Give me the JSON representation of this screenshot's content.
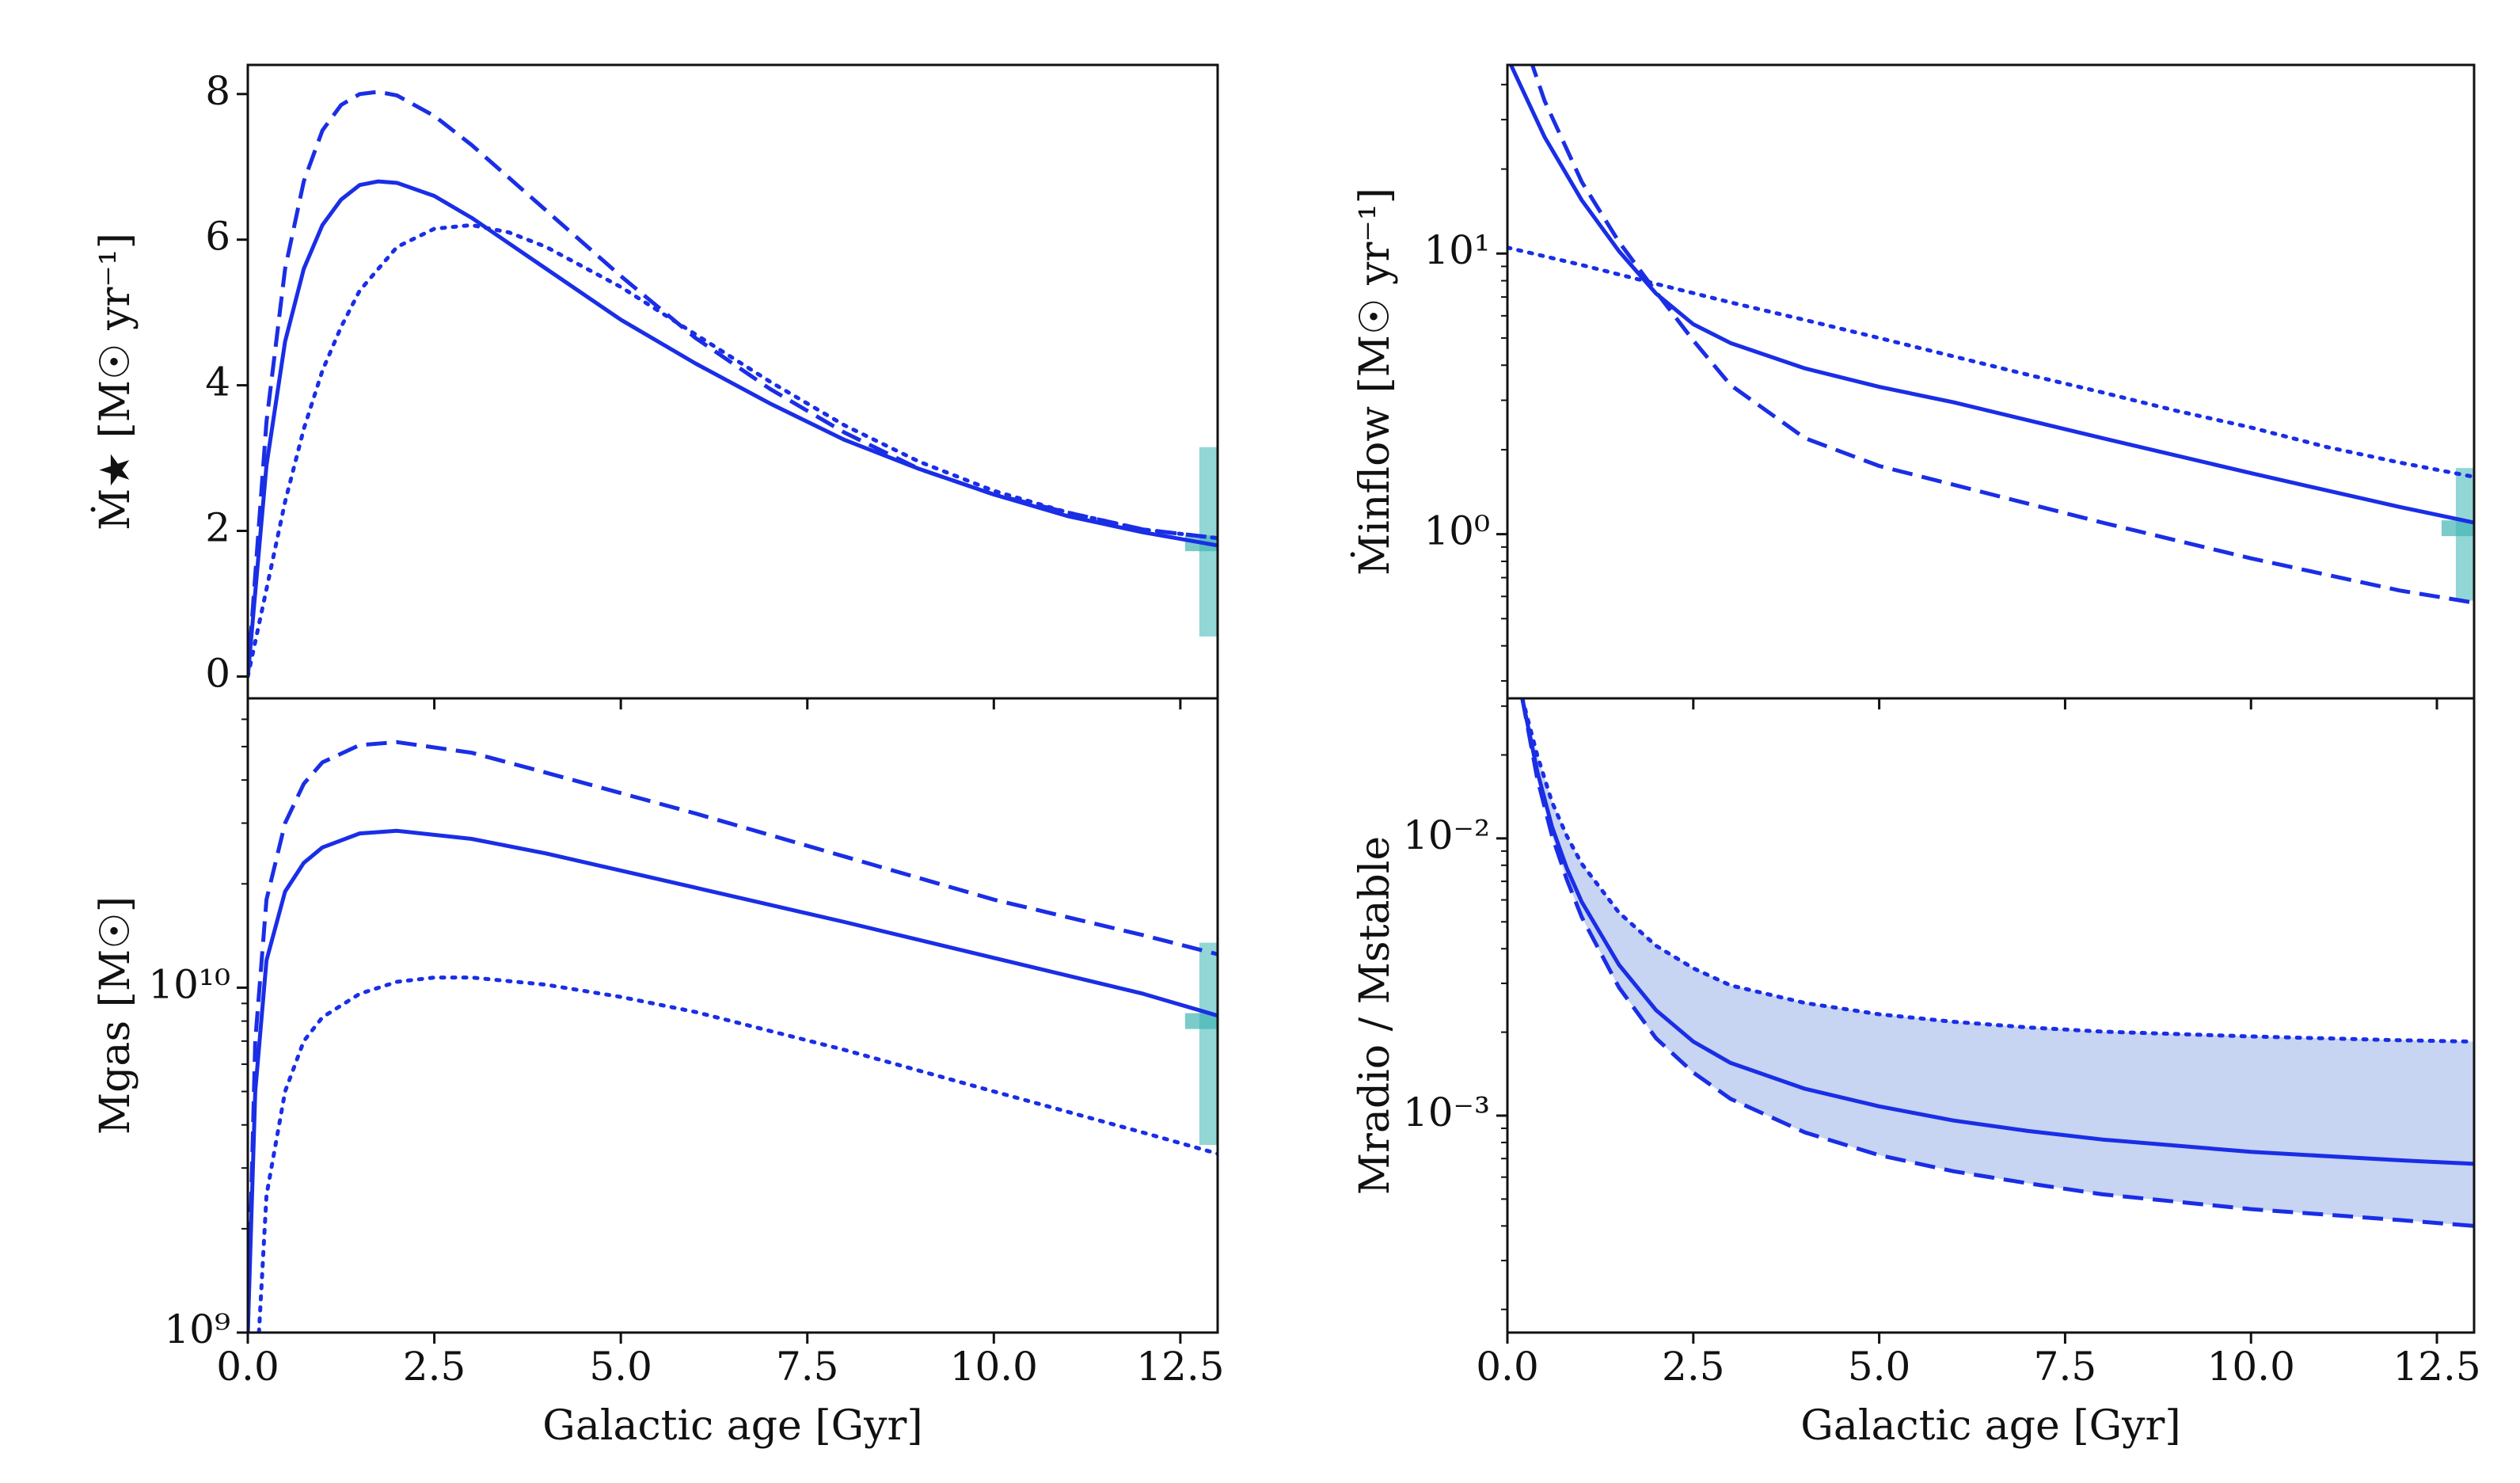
{
  "colors": {
    "line": "#1a2ee6",
    "fill": "#c7d4f2",
    "obs_band": "#7fcfcf",
    "obs_mark": "#45b5b5"
  },
  "chart_data": [
    {
      "id": "sfr",
      "type": "line",
      "ylabel": "Ṁ★ [M☉ yr⁻¹]",
      "xlabel": "",
      "xlim": [
        0,
        13
      ],
      "ylim": [
        -0.3,
        8.4
      ],
      "yscale": "linear",
      "yticks": [
        0,
        2,
        4,
        6,
        8
      ],
      "yticklabels": [
        "0",
        "2",
        "4",
        "6",
        "8"
      ],
      "series": [
        {
          "name": "solid",
          "style": "solid",
          "x": [
            0,
            0.25,
            0.5,
            0.75,
            1.0,
            1.25,
            1.5,
            1.75,
            2.0,
            2.5,
            3.0,
            4.0,
            5.0,
            6.0,
            7.0,
            8.0,
            9.0,
            10.0,
            11.0,
            12.0,
            13.0
          ],
          "y": [
            0,
            2.9,
            4.6,
            5.6,
            6.2,
            6.55,
            6.75,
            6.8,
            6.78,
            6.6,
            6.3,
            5.6,
            4.9,
            4.3,
            3.75,
            3.25,
            2.85,
            2.5,
            2.2,
            1.98,
            1.8
          ]
        },
        {
          "name": "dashed",
          "style": "dashed",
          "x": [
            0,
            0.25,
            0.5,
            0.75,
            1.0,
            1.25,
            1.5,
            1.75,
            2.0,
            2.5,
            3.0,
            4.0,
            5.0,
            6.0,
            7.0,
            8.0,
            9.0,
            10.0,
            11.0,
            12.0,
            13.0
          ],
          "y": [
            0,
            3.5,
            5.6,
            6.8,
            7.5,
            7.85,
            8.0,
            8.03,
            7.98,
            7.7,
            7.3,
            6.4,
            5.5,
            4.65,
            3.95,
            3.35,
            2.85,
            2.5,
            2.25,
            2.02,
            1.9
          ]
        },
        {
          "name": "dotted",
          "style": "dotted",
          "x": [
            0,
            0.25,
            0.5,
            0.75,
            1.0,
            1.25,
            1.5,
            2.0,
            2.5,
            3.0,
            3.5,
            4.0,
            5.0,
            6.0,
            7.0,
            8.0,
            9.0,
            10.0,
            11.0,
            12.0,
            13.0
          ],
          "y": [
            0,
            1.2,
            2.4,
            3.4,
            4.2,
            4.8,
            5.3,
            5.9,
            6.15,
            6.2,
            6.1,
            5.9,
            5.35,
            4.7,
            4.05,
            3.45,
            2.95,
            2.55,
            2.25,
            2.02,
            1.9
          ]
        }
      ],
      "observation": {
        "x": 12.85,
        "band": [
          0.55,
          3.15
        ],
        "marker": 1.83
      }
    },
    {
      "id": "inflow",
      "type": "line",
      "ylabel": "Ṁinflow [M☉ yr⁻¹]",
      "xlabel": "",
      "xlim": [
        0,
        13
      ],
      "ylim": [
        0.26,
        47
      ],
      "yscale": "log",
      "yticks": [
        1,
        10
      ],
      "yticklabels": [
        "10⁰",
        "10¹"
      ],
      "series": [
        {
          "name": "solid",
          "style": "solid",
          "x": [
            0,
            0.5,
            1.0,
            1.5,
            2.0,
            2.5,
            3.0,
            4.0,
            5.0,
            6.0,
            8.0,
            10.0,
            12.0,
            13.0
          ],
          "y": [
            50,
            26,
            15.5,
            10.2,
            7.2,
            5.6,
            4.8,
            3.9,
            3.35,
            2.95,
            2.2,
            1.65,
            1.25,
            1.1
          ]
        },
        {
          "name": "dashed",
          "style": "dashed",
          "x": [
            0.3,
            0.5,
            1.0,
            1.5,
            2.0,
            2.5,
            3.0,
            4.0,
            5.0,
            6.0,
            8.0,
            10.0,
            12.0,
            13.0
          ],
          "y": [
            50,
            35,
            18,
            11,
            7.3,
            4.9,
            3.4,
            2.2,
            1.75,
            1.5,
            1.1,
            0.82,
            0.63,
            0.57
          ]
        },
        {
          "name": "dotted",
          "style": "dotted",
          "x": [
            0,
            1,
            2,
            3,
            4,
            5,
            6,
            7,
            8,
            9,
            10,
            11,
            12,
            13
          ],
          "y": [
            10.5,
            9.1,
            7.8,
            6.7,
            5.8,
            5.0,
            4.3,
            3.7,
            3.2,
            2.75,
            2.4,
            2.05,
            1.8,
            1.6
          ]
        }
      ],
      "observation": {
        "x": 12.85,
        "band": [
          0.58,
          1.72
        ],
        "marker": 1.05
      }
    },
    {
      "id": "gas",
      "type": "line",
      "ylabel": "Mgas [M☉]",
      "xlabel": "Galactic age [Gyr]",
      "xlim": [
        0,
        13
      ],
      "ylim": [
        1000000000.0,
        69000000000.0
      ],
      "yscale": "log",
      "yticks": [
        1000000000.0,
        10000000000.0
      ],
      "yticklabels": [
        "10⁹",
        "10¹⁰"
      ],
      "xticks": [
        0,
        2.5,
        5,
        7.5,
        10,
        12.5
      ],
      "xticklabels": [
        "0.0",
        "2.5",
        "5.0",
        "7.5",
        "10.0",
        "12.5"
      ],
      "series": [
        {
          "name": "solid",
          "style": "solid",
          "x": [
            0,
            0.1,
            0.25,
            0.5,
            0.75,
            1.0,
            1.5,
            2.0,
            3.0,
            4.0,
            6.0,
            8.0,
            10.0,
            12.0,
            13.0
          ],
          "y": [
            1000000000.0,
            5000000000.0,
            12000000000.0,
            19000000000.0,
            23000000000.0,
            25500000000.0,
            28000000000.0,
            28500000000.0,
            27000000000.0,
            24500000000.0,
            19500000000.0,
            15500000000.0,
            12200000000.0,
            9600000000.0,
            8300000000.0
          ]
        },
        {
          "name": "dashed",
          "style": "dashed",
          "x": [
            0,
            0.1,
            0.25,
            0.5,
            0.75,
            1.0,
            1.5,
            2.0,
            3.0,
            4.0,
            6.0,
            8.0,
            10.0,
            12.0,
            13.0
          ],
          "y": [
            1000000000.0,
            7000000000.0,
            18000000000.0,
            30000000000.0,
            39000000000.0,
            45000000000.0,
            50500000000.0,
            51500000000.0,
            48000000000.0,
            42000000000.0,
            32000000000.0,
            24000000000.0,
            18000000000.0,
            14200000000.0,
            12500000000.0
          ]
        },
        {
          "name": "dotted",
          "style": "dotted",
          "x": [
            0.15,
            0.25,
            0.5,
            0.75,
            1.0,
            1.5,
            2.0,
            2.5,
            3.0,
            4.0,
            5.0,
            6.0,
            8.0,
            10.0,
            12.0,
            13.0
          ],
          "y": [
            1000000000.0,
            2500000000.0,
            5000000000.0,
            7000000000.0,
            8200000000.0,
            9600000000.0,
            10400000000.0,
            10700000000.0,
            10700000000.0,
            10200000000.0,
            9400000000.0,
            8500000000.0,
            6600000000.0,
            5000000000.0,
            3800000000.0,
            3300000000.0
          ]
        }
      ],
      "observation": {
        "x": 12.85,
        "band": [
          3500000000.0,
          13500000000.0
        ],
        "marker": 8000000000.0
      }
    },
    {
      "id": "ratio",
      "type": "line",
      "ylabel": "Mradio / Mstable",
      "xlabel": "Galactic age [Gyr]",
      "xlim": [
        0,
        13
      ],
      "ylim": [
        0.000165,
        0.032
      ],
      "yscale": "log",
      "yticks": [
        0.001,
        0.01
      ],
      "yticklabels": [
        "10⁻³",
        "10⁻²"
      ],
      "xticks": [
        0,
        2.5,
        5,
        7.5,
        10,
        12.5
      ],
      "xticklabels": [
        "0.0",
        "2.5",
        "5.0",
        "7.5",
        "10.0",
        "12.5"
      ],
      "shaded_between": [
        "dotted",
        "dashed"
      ],
      "series": [
        {
          "name": "solid",
          "style": "solid",
          "x": [
            0.2,
            0.4,
            0.6,
            0.8,
            1.0,
            1.5,
            2.0,
            2.5,
            3.0,
            4.0,
            5.0,
            6.0,
            7.0,
            8.0,
            10.0,
            12.0,
            13.0
          ],
          "y": [
            0.032,
            0.0175,
            0.011,
            0.0078,
            0.0059,
            0.0035,
            0.0024,
            0.00185,
            0.00155,
            0.00125,
            0.00108,
            0.00096,
            0.00088,
            0.00082,
            0.00074,
            0.00069,
            0.00067
          ]
        },
        {
          "name": "dashed",
          "style": "dashed",
          "x": [
            0.2,
            0.4,
            0.6,
            0.8,
            1.0,
            1.5,
            2.0,
            2.5,
            3.0,
            4.0,
            5.0,
            6.0,
            7.0,
            8.0,
            10.0,
            12.0,
            13.0
          ],
          "y": [
            0.032,
            0.0165,
            0.0102,
            0.0071,
            0.0052,
            0.0029,
            0.0019,
            0.00143,
            0.00115,
            0.00087,
            0.00072,
            0.00063,
            0.00057,
            0.00052,
            0.00046,
            0.00042,
            0.0004
          ]
        },
        {
          "name": "dotted",
          "style": "dotted",
          "x": [
            0.2,
            0.4,
            0.6,
            0.8,
            1.0,
            1.5,
            2.0,
            2.5,
            3.0,
            4.0,
            5.0,
            6.0,
            7.0,
            8.0,
            10.0,
            12.0,
            13.0
          ],
          "y": [
            0.032,
            0.02,
            0.0135,
            0.0102,
            0.0081,
            0.0054,
            0.0041,
            0.0034,
            0.00295,
            0.00255,
            0.00232,
            0.00218,
            0.00208,
            0.00201,
            0.00193,
            0.00187,
            0.00185
          ]
        }
      ]
    }
  ]
}
